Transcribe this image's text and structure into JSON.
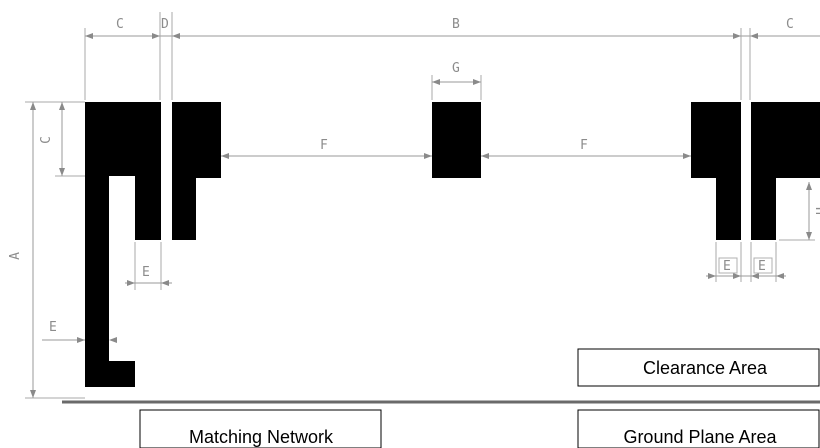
{
  "dimensions": {
    "A": "A",
    "B": "B",
    "C_left": "C",
    "C_right": "C",
    "C_vertical": "C",
    "D": "D",
    "E_left_slot": "E",
    "E_feed": "E",
    "E_right_1": "E",
    "E_right_2": "E",
    "F_left": "F",
    "F_right": "F",
    "G": "G",
    "H_partial": "H"
  },
  "labels": {
    "clearance_area": "Clearance Area",
    "matching_network": "Matching Network",
    "ground_plane_area": "Ground Plane Area"
  },
  "colors": {
    "trace": "#000000",
    "dimension": "#9a9a9a",
    "ground": "#6a6a6a"
  }
}
